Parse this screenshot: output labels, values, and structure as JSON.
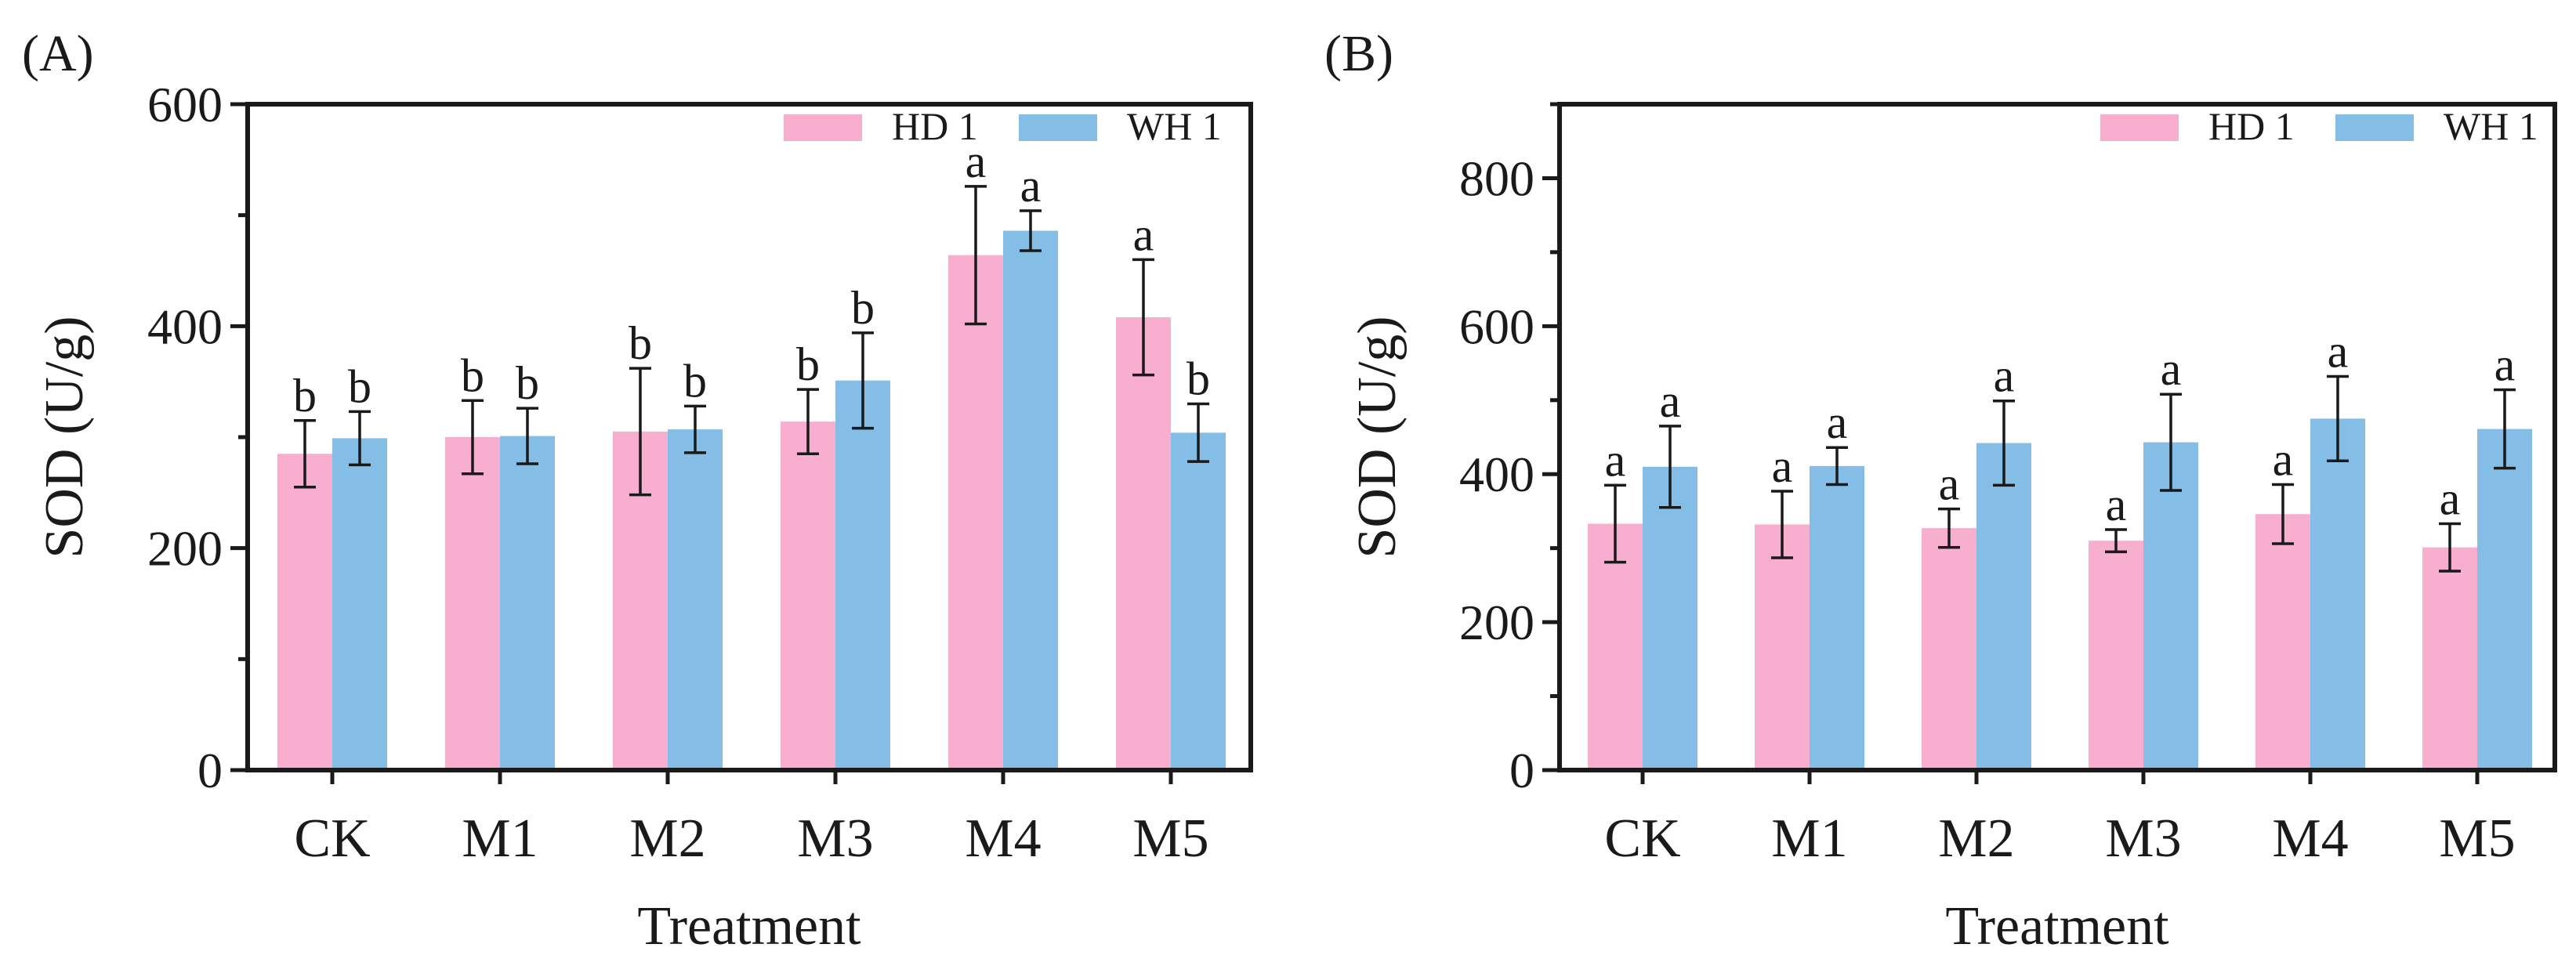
{
  "chart_data": [
    {
      "panel_label": "(A)",
      "type": "bar",
      "xlabel": "Treatment",
      "ylabel": "SOD (U/g)",
      "ylim": [
        0,
        600
      ],
      "yticks": [
        0,
        200,
        400,
        600
      ],
      "categories": [
        "CK",
        "M1",
        "M2",
        "M3",
        "M4",
        "M5"
      ],
      "legend_position": "top-right",
      "series": [
        {
          "name": "HD 1",
          "color": "#f7aecf",
          "values": [
            285,
            300,
            305,
            314,
            464,
            408
          ],
          "errors": [
            30,
            33,
            57,
            29,
            62,
            52
          ],
          "letters": [
            "b",
            "b",
            "b",
            "b",
            "a",
            "a"
          ]
        },
        {
          "name": "WH 1",
          "color": "#84bde6",
          "values": [
            299,
            301,
            307,
            351,
            486,
            304
          ],
          "errors": [
            24,
            25,
            21,
            43,
            18,
            26
          ],
          "letters": [
            "b",
            "b",
            "b",
            "b",
            "a",
            "b"
          ]
        }
      ]
    },
    {
      "panel_label": "(B)",
      "type": "bar",
      "xlabel": "Treatment",
      "ylabel": "SOD (U/g)",
      "ylim": [
        0,
        900
      ],
      "yticks": [
        0,
        200,
        400,
        600,
        800
      ],
      "categories": [
        "CK",
        "M1",
        "M2",
        "M3",
        "M4",
        "M5"
      ],
      "legend_position": "top-right",
      "series": [
        {
          "name": "HD 1",
          "color": "#f7aecf",
          "values": [
            333,
            332,
            327,
            310,
            346,
            301
          ],
          "errors": [
            52,
            45,
            26,
            15,
            40,
            32
          ],
          "letters": [
            "a",
            "a",
            "a",
            "a",
            "a",
            "a"
          ]
        },
        {
          "name": "WH 1",
          "color": "#84bde6",
          "values": [
            410,
            411,
            442,
            443,
            475,
            461
          ],
          "errors": [
            55,
            25,
            57,
            65,
            57,
            53
          ],
          "letters": [
            "a",
            "a",
            "a",
            "a",
            "a",
            "a"
          ]
        }
      ]
    }
  ]
}
